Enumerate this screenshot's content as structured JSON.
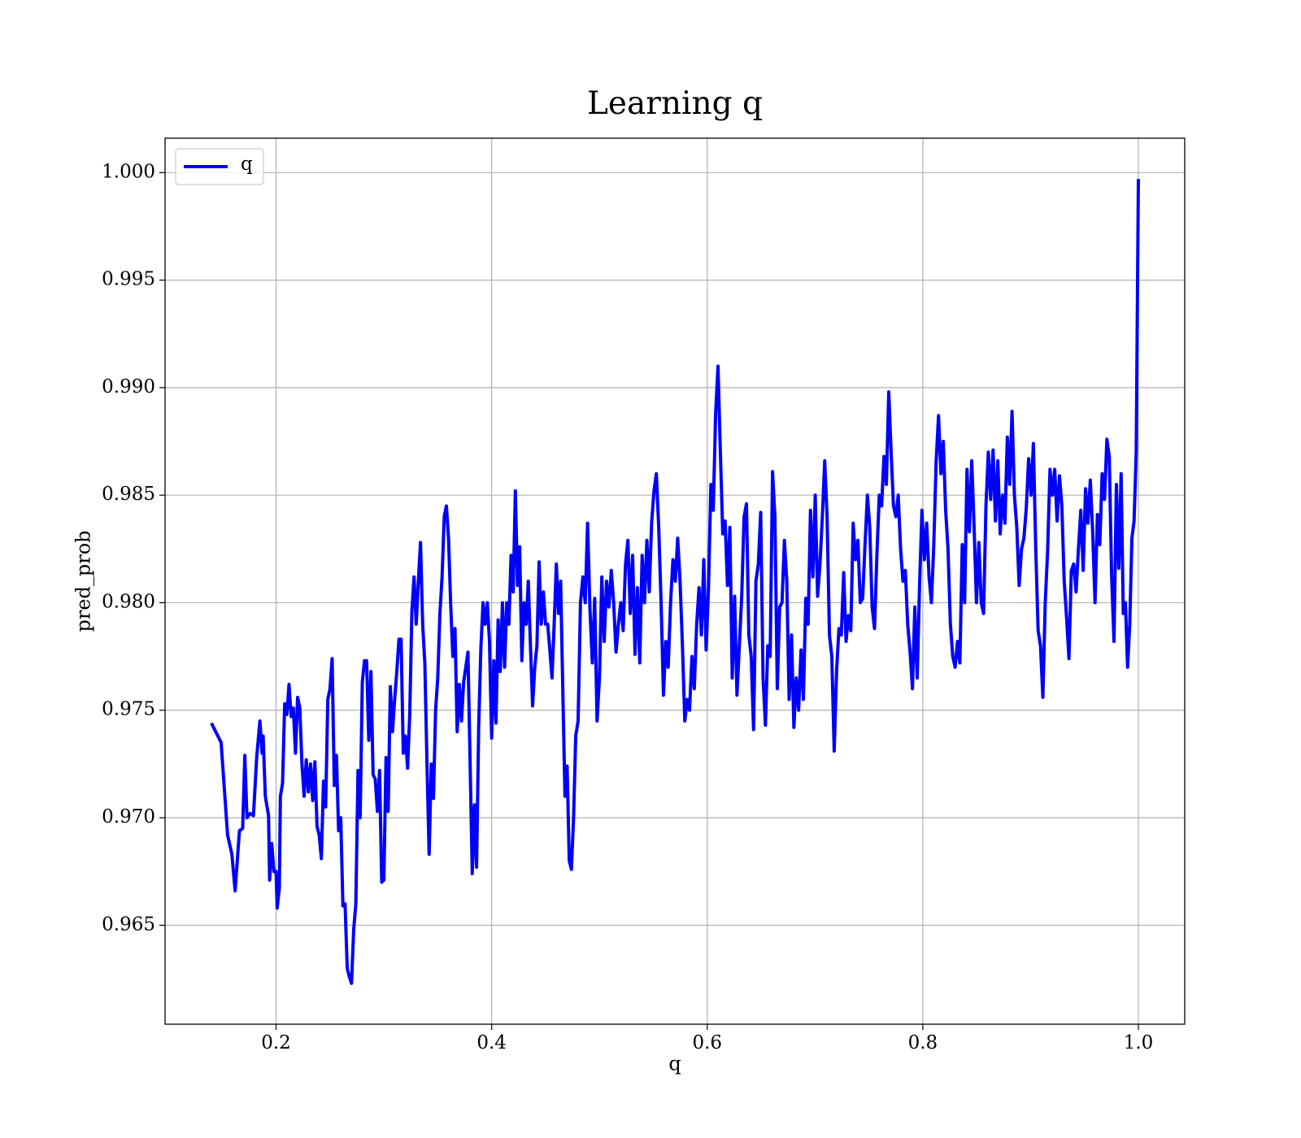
{
  "chart_data": {
    "type": "line",
    "title": "Learning q",
    "xlabel": "q",
    "ylabel": "pred_prob",
    "x": [
      0.14,
      0.149,
      0.155,
      0.159,
      0.162,
      0.166,
      0.169,
      0.171,
      0.173,
      0.176,
      0.179,
      0.182,
      0.185,
      0.187,
      0.188,
      0.19,
      0.193,
      0.194,
      0.196,
      0.198,
      0.2,
      0.201,
      0.203,
      0.204,
      0.206,
      0.208,
      0.21,
      0.212,
      0.214,
      0.216,
      0.218,
      0.22,
      0.222,
      0.224,
      0.226,
      0.228,
      0.23,
      0.232,
      0.234,
      0.236,
      0.238,
      0.24,
      0.242,
      0.244,
      0.246,
      0.248,
      0.25,
      0.252,
      0.254,
      0.256,
      0.258,
      0.26,
      0.262,
      0.264,
      0.266,
      0.268,
      0.27,
      0.272,
      0.274,
      0.276,
      0.278,
      0.28,
      0.282,
      0.284,
      0.286,
      0.288,
      0.29,
      0.292,
      0.294,
      0.296,
      0.298,
      0.3,
      0.302,
      0.304,
      0.306,
      0.308,
      0.31,
      0.312,
      0.314,
      0.316,
      0.318,
      0.32,
      0.322,
      0.324,
      0.326,
      0.328,
      0.33,
      0.332,
      0.334,
      0.336,
      0.338,
      0.34,
      0.342,
      0.344,
      0.346,
      0.348,
      0.35,
      0.352,
      0.354,
      0.356,
      0.358,
      0.36,
      0.362,
      0.364,
      0.366,
      0.368,
      0.37,
      0.372,
      0.374,
      0.376,
      0.378,
      0.38,
      0.382,
      0.384,
      0.386,
      0.388,
      0.39,
      0.392,
      0.394,
      0.396,
      0.398,
      0.4,
      0.402,
      0.404,
      0.406,
      0.408,
      0.41,
      0.412,
      0.414,
      0.416,
      0.418,
      0.42,
      0.422,
      0.424,
      0.426,
      0.428,
      0.43,
      0.432,
      0.434,
      0.436,
      0.438,
      0.44,
      0.442,
      0.444,
      0.446,
      0.448,
      0.45,
      0.452,
      0.454,
      0.456,
      0.458,
      0.46,
      0.462,
      0.464,
      0.466,
      0.468,
      0.47,
      0.472,
      0.474,
      0.476,
      0.478,
      0.4802,
      0.4824,
      0.4846,
      0.4868,
      0.489,
      0.4912,
      0.4934,
      0.4956,
      0.4978,
      0.5,
      0.5022,
      0.5044,
      0.5066,
      0.5088,
      0.511,
      0.5132,
      0.5154,
      0.5176,
      0.5198,
      0.522,
      0.5242,
      0.5264,
      0.5286,
      0.5308,
      0.533,
      0.5352,
      0.5374,
      0.5396,
      0.5418,
      0.544,
      0.5462,
      0.5484,
      0.5506,
      0.5528,
      0.555,
      0.5572,
      0.5594,
      0.5616,
      0.5638,
      0.566,
      0.5682,
      0.5704,
      0.5726,
      0.5748,
      0.577,
      0.5792,
      0.5814,
      0.5836,
      0.5858,
      0.588,
      0.5902,
      0.5924,
      0.5946,
      0.5968,
      0.599,
      0.6012,
      0.6034,
      0.6056,
      0.6078,
      0.61,
      0.6122,
      0.6144,
      0.6166,
      0.6188,
      0.621,
      0.6232,
      0.6254,
      0.6276,
      0.6298,
      0.632,
      0.6342,
      0.6364,
      0.6386,
      0.6408,
      0.643,
      0.6452,
      0.6474,
      0.6496,
      0.6518,
      0.654,
      0.6562,
      0.6584,
      0.6606,
      0.6628,
      0.665,
      0.6672,
      0.6694,
      0.6716,
      0.6738,
      0.676,
      0.6782,
      0.6804,
      0.6826,
      0.6848,
      0.687,
      0.6892,
      0.6914,
      0.6936,
      0.6958,
      0.698,
      0.7002,
      0.7024,
      0.7046,
      0.7068,
      0.709,
      0.7112,
      0.7134,
      0.7156,
      0.7178,
      0.72,
      0.7222,
      0.7244,
      0.7266,
      0.7288,
      0.731,
      0.7332,
      0.7354,
      0.7376,
      0.7398,
      0.742,
      0.7442,
      0.7464,
      0.7486,
      0.7508,
      0.753,
      0.7552,
      0.7574,
      0.7596,
      0.7618,
      0.764,
      0.7662,
      0.7684,
      0.7706,
      0.7728,
      0.775,
      0.7772,
      0.7794,
      0.7816,
      0.7838,
      0.786,
      0.7882,
      0.7904,
      0.7926,
      0.7948,
      0.797,
      0.7992,
      0.8014,
      0.8036,
      0.8058,
      0.808,
      0.8102,
      0.8124,
      0.8146,
      0.8168,
      0.819,
      0.8212,
      0.8234,
      0.8256,
      0.8278,
      0.83,
      0.8322,
      0.8344,
      0.8366,
      0.8388,
      0.841,
      0.8432,
      0.8454,
      0.8476,
      0.8498,
      0.852,
      0.8542,
      0.8564,
      0.8586,
      0.8608,
      0.863,
      0.8652,
      0.8674,
      0.8696,
      0.8718,
      0.874,
      0.8762,
      0.8784,
      0.8806,
      0.8828,
      0.885,
      0.8872,
      0.8894,
      0.8916,
      0.8938,
      0.896,
      0.8982,
      0.9004,
      0.9026,
      0.9048,
      0.907,
      0.9092,
      0.9114,
      0.9136,
      0.9158,
      0.918,
      0.9202,
      0.9224,
      0.9246,
      0.9268,
      0.929,
      0.9312,
      0.9334,
      0.9356,
      0.9378,
      0.94,
      0.9422,
      0.9444,
      0.9466,
      0.9488,
      0.951,
      0.9532,
      0.9554,
      0.9576,
      0.9598,
      0.962,
      0.9642,
      0.9664,
      0.9686,
      0.9708,
      0.973,
      0.9752,
      0.9774,
      0.9796,
      0.9818,
      0.984,
      0.986,
      0.988,
      0.99,
      0.992,
      0.994,
      0.996,
      0.998,
      1.0
    ],
    "series": [
      {
        "name": "q",
        "color": "#0000ff",
        "values": [
          0.9744,
          0.9735,
          0.9692,
          0.9683,
          0.9666,
          0.9694,
          0.9695,
          0.9729,
          0.97,
          0.9702,
          0.9701,
          0.9728,
          0.9745,
          0.973,
          0.9738,
          0.971,
          0.9701,
          0.9671,
          0.9688,
          0.9675,
          0.9675,
          0.9658,
          0.9667,
          0.971,
          0.9716,
          0.9753,
          0.9748,
          0.9762,
          0.9747,
          0.9751,
          0.973,
          0.9756,
          0.9751,
          0.9725,
          0.971,
          0.9727,
          0.9712,
          0.9725,
          0.9708,
          0.9726,
          0.9696,
          0.9692,
          0.9681,
          0.9717,
          0.9705,
          0.9755,
          0.976,
          0.9774,
          0.9715,
          0.9729,
          0.9694,
          0.97,
          0.9659,
          0.966,
          0.963,
          0.9626,
          0.9623,
          0.9648,
          0.966,
          0.9722,
          0.97,
          0.9763,
          0.9773,
          0.9773,
          0.9736,
          0.9768,
          0.972,
          0.9718,
          0.9703,
          0.9722,
          0.967,
          0.9671,
          0.9728,
          0.9703,
          0.9761,
          0.974,
          0.9755,
          0.9768,
          0.9783,
          0.9783,
          0.973,
          0.9738,
          0.9723,
          0.9748,
          0.9796,
          0.9812,
          0.979,
          0.981,
          0.9828,
          0.979,
          0.9772,
          0.9725,
          0.9683,
          0.9725,
          0.9709,
          0.975,
          0.9765,
          0.9795,
          0.9812,
          0.984,
          0.9845,
          0.983,
          0.9799,
          0.9775,
          0.9788,
          0.974,
          0.9762,
          0.9745,
          0.9763,
          0.977,
          0.9777,
          0.9726,
          0.9674,
          0.9706,
          0.9677,
          0.9743,
          0.9779,
          0.98,
          0.979,
          0.98,
          0.9782,
          0.9737,
          0.9773,
          0.9744,
          0.9792,
          0.9768,
          0.98,
          0.977,
          0.98,
          0.979,
          0.9822,
          0.9805,
          0.9852,
          0.9808,
          0.9826,
          0.9773,
          0.98,
          0.979,
          0.981,
          0.978,
          0.9752,
          0.977,
          0.978,
          0.9819,
          0.979,
          0.9805,
          0.979,
          0.979,
          0.9778,
          0.9765,
          0.979,
          0.9818,
          0.9795,
          0.981,
          0.976,
          0.971,
          0.9724,
          0.968,
          0.9676,
          0.97,
          0.9738,
          0.9745,
          0.98,
          0.9812,
          0.98,
          0.9837,
          0.9797,
          0.9772,
          0.9802,
          0.9745,
          0.9765,
          0.9812,
          0.9782,
          0.981,
          0.9798,
          0.9815,
          0.98,
          0.9777,
          0.979,
          0.98,
          0.9787,
          0.9818,
          0.9829,
          0.9795,
          0.9822,
          0.9776,
          0.9807,
          0.9772,
          0.9822,
          0.98,
          0.9829,
          0.9805,
          0.9837,
          0.9852,
          0.986,
          0.9835,
          0.98,
          0.9757,
          0.9782,
          0.977,
          0.98,
          0.982,
          0.981,
          0.983,
          0.981,
          0.978,
          0.9745,
          0.9755,
          0.975,
          0.9775,
          0.976,
          0.979,
          0.9807,
          0.9785,
          0.982,
          0.9778,
          0.9807,
          0.9855,
          0.9843,
          0.9888,
          0.991,
          0.987,
          0.9832,
          0.9838,
          0.9808,
          0.9835,
          0.9765,
          0.9803,
          0.9757,
          0.978,
          0.9803,
          0.984,
          0.9846,
          0.9785,
          0.9775,
          0.9741,
          0.981,
          0.9818,
          0.9842,
          0.9765,
          0.9743,
          0.978,
          0.9775,
          0.9861,
          0.984,
          0.976,
          0.9798,
          0.98,
          0.9829,
          0.981,
          0.9755,
          0.9785,
          0.9742,
          0.9765,
          0.975,
          0.9778,
          0.9755,
          0.9802,
          0.979,
          0.9843,
          0.9812,
          0.985,
          0.9803,
          0.9818,
          0.984,
          0.9866,
          0.984,
          0.9785,
          0.9775,
          0.9731,
          0.9768,
          0.9788,
          0.9785,
          0.9814,
          0.9782,
          0.9794,
          0.9787,
          0.9837,
          0.982,
          0.9829,
          0.98,
          0.9802,
          0.9827,
          0.985,
          0.9835,
          0.9798,
          0.9788,
          0.9822,
          0.985,
          0.9845,
          0.9868,
          0.9855,
          0.9898,
          0.987,
          0.9845,
          0.984,
          0.985,
          0.9825,
          0.981,
          0.9815,
          0.979,
          0.9777,
          0.976,
          0.9798,
          0.9765,
          0.9808,
          0.9843,
          0.982,
          0.9837,
          0.9812,
          0.98,
          0.9827,
          0.9866,
          0.9887,
          0.986,
          0.9875,
          0.9843,
          0.9825,
          0.979,
          0.9775,
          0.977,
          0.9782,
          0.9772,
          0.9827,
          0.98,
          0.9862,
          0.9833,
          0.9866,
          0.9835,
          0.98,
          0.9828,
          0.98,
          0.9795,
          0.9845,
          0.987,
          0.9848,
          0.9871,
          0.9838,
          0.9866,
          0.9832,
          0.985,
          0.9837,
          0.9877,
          0.9855,
          0.9889,
          0.985,
          0.9835,
          0.9808,
          0.9825,
          0.983,
          0.9844,
          0.9867,
          0.985,
          0.9874,
          0.9825,
          0.9787,
          0.978,
          0.9756,
          0.98,
          0.9824,
          0.9862,
          0.985,
          0.9862,
          0.9838,
          0.9859,
          0.9845,
          0.981,
          0.9793,
          0.9774,
          0.9815,
          0.9818,
          0.9805,
          0.9825,
          0.9843,
          0.9815,
          0.9853,
          0.9837,
          0.9857,
          0.9833,
          0.98,
          0.9841,
          0.9827,
          0.986,
          0.9848,
          0.9876,
          0.9868,
          0.9812,
          0.9782,
          0.9855,
          0.9816,
          0.986,
          0.9795,
          0.98,
          0.977,
          0.979,
          0.983,
          0.9838,
          0.987,
          0.9997
        ]
      }
    ],
    "xlim": [
      0.097,
      1.043
    ],
    "ylim": [
      0.9604,
      1.0016
    ],
    "xticks": [
      0.2,
      0.4,
      0.6,
      0.8,
      {
        "value": 1,
        "label": "1.0"
      }
    ],
    "yticks": [
      0.965,
      {
        "value": 0.97,
        "label": "0.970"
      },
      0.975,
      {
        "value": 0.98,
        "label": "0.980"
      },
      0.985,
      {
        "value": 0.99,
        "label": "0.990"
      },
      0.995,
      {
        "value": 1,
        "label": "1.000"
      }
    ],
    "grid": true,
    "legend": "upper left"
  }
}
